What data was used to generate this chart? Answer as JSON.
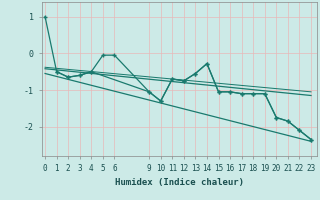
{
  "xlabel": "Humidex (Indice chaleur)",
  "background_color": "#cceae7",
  "grid_color": "#f0f0f0",
  "line_color": "#1a7a6e",
  "ylim": [
    -2.8,
    1.4
  ],
  "xlim": [
    -0.3,
    23.5
  ],
  "xtick_positions": [
    0,
    1,
    2,
    3,
    4,
    5,
    6,
    9,
    10,
    11,
    12,
    13,
    14,
    15,
    16,
    17,
    18,
    19,
    20,
    21,
    22,
    23
  ],
  "xtick_labels": [
    "0",
    "1",
    "2",
    "3",
    "4",
    "5",
    "6",
    "9",
    "10",
    "11",
    "12",
    "13",
    "14",
    "15",
    "16",
    "17",
    "18",
    "19",
    "20",
    "21",
    "22",
    "23"
  ],
  "ytick_positions": [
    1,
    0,
    -1,
    -2
  ],
  "ytick_labels": [
    "1",
    "0",
    "-1",
    "-2"
  ],
  "series1_x": [
    0,
    1,
    2,
    3,
    4,
    5,
    6,
    9,
    10,
    11,
    12,
    13,
    14,
    15,
    16,
    17,
    18,
    19,
    20,
    21,
    22,
    23
  ],
  "series1_y": [
    1.0,
    -0.5,
    -0.65,
    -0.6,
    -0.5,
    -0.05,
    -0.05,
    -1.05,
    -1.3,
    -0.7,
    -0.75,
    -0.55,
    -0.28,
    -1.05,
    -1.05,
    -1.1,
    -1.1,
    -1.1,
    -1.75,
    -1.85,
    -2.1,
    -2.35
  ],
  "series2_x": [
    1,
    2,
    3,
    4,
    9,
    10,
    11,
    12,
    13,
    14,
    15,
    16,
    17,
    18,
    19,
    20,
    21,
    22,
    23
  ],
  "series2_y": [
    -0.5,
    -0.65,
    -0.6,
    -0.5,
    -1.05,
    -1.3,
    -0.7,
    -0.75,
    -0.55,
    -0.28,
    -1.05,
    -1.05,
    -1.1,
    -1.1,
    -1.1,
    -1.75,
    -1.85,
    -2.1,
    -2.35
  ],
  "trend1_x": [
    0,
    23
  ],
  "trend1_y": [
    -0.42,
    -1.15
  ],
  "trend2_x": [
    0,
    23
  ],
  "trend2_y": [
    -0.55,
    -2.4
  ],
  "trend3_x": [
    0,
    23
  ],
  "trend3_y": [
    -0.38,
    -1.05
  ],
  "markersize": 2.5,
  "linewidth": 0.9,
  "xlabel_fontsize": 6.5,
  "tick_fontsize": 5.5
}
